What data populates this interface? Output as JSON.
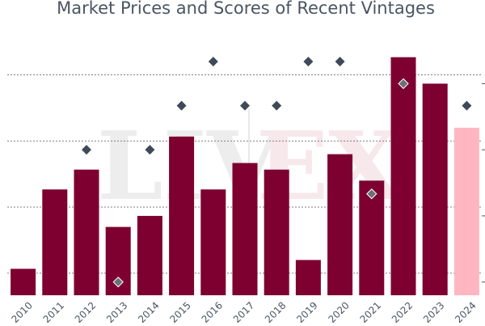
{
  "chart_data": {
    "type": "bar",
    "title": "Market Prices and Scores of Recent Vintages",
    "categories": [
      "2010",
      "2011",
      "2012",
      "2013",
      "2014",
      "2015",
      "2016",
      "2017",
      "2018",
      "2019",
      "2020",
      "2021",
      "2022",
      "2023",
      "2024"
    ],
    "series": [
      {
        "type": "bar",
        "axis": "left",
        "values": [
          0.6,
          2.4,
          2.85,
          1.55,
          1.8,
          3.6,
          2.4,
          3.0,
          2.85,
          0.8,
          3.2,
          2.6,
          5.4,
          4.8,
          3.8
        ],
        "colors": [
          "#7d0030",
          "#7d0030",
          "#7d0030",
          "#7d0030",
          "#7d0030",
          "#7d0030",
          "#7d0030",
          "#7d0030",
          "#7d0030",
          "#7d0030",
          "#7d0030",
          "#7d0030",
          "#7d0030",
          "#7d0030",
          "#ffb6c1"
        ]
      },
      {
        "type": "scatter",
        "axis": "right",
        "marker": "diamond",
        "values": [
          null,
          null,
          97,
          94,
          97,
          98,
          99,
          98,
          98,
          99,
          99,
          96,
          98.5,
          null,
          98
        ]
      }
    ],
    "ylim_left": [
      0,
      6
    ],
    "ylim_right": [
      93.7,
      99.7
    ],
    "grid": true,
    "legend": "none",
    "watermark": "LIV-EX",
    "colors": {
      "bar": "#7d0030",
      "bar_highlight": "#ffb6c1",
      "marker": "#3e4a57",
      "marker_highlight": "#6c6f78",
      "grid": "#555555",
      "text": "#4a5563"
    }
  }
}
